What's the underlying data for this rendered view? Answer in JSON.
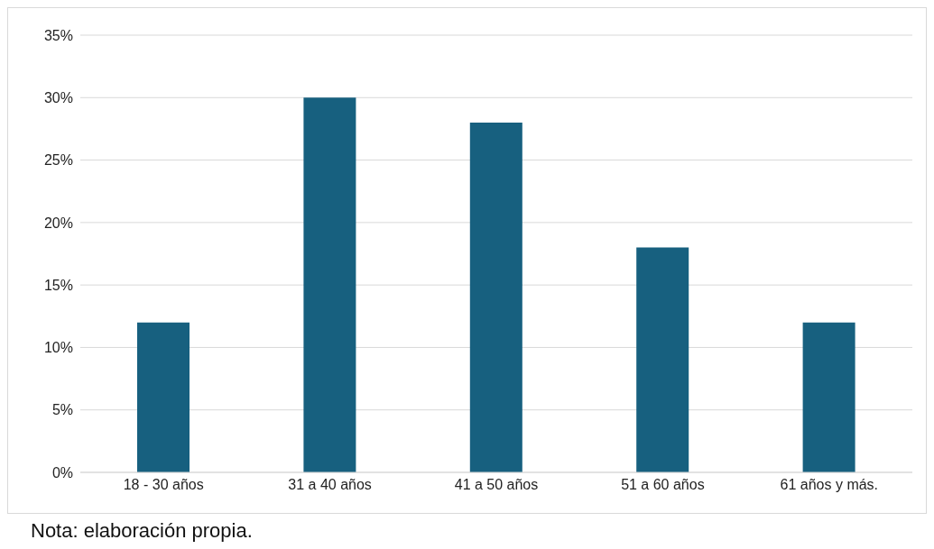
{
  "chart_data": {
    "type": "bar",
    "categories": [
      "18 - 30 años",
      "31 a 40 años",
      "41 a 50 años",
      "51 a 60 años",
      "61 años y más."
    ],
    "values": [
      12,
      30,
      28,
      18,
      12
    ],
    "color": "#17607f",
    "ylim": [
      0,
      35
    ],
    "yticks": [
      {
        "value": 0,
        "label": "0%"
      },
      {
        "value": 5,
        "label": "5%"
      },
      {
        "value": 10,
        "label": "10%"
      },
      {
        "value": 15,
        "label": "15%"
      },
      {
        "value": 20,
        "label": "20%"
      },
      {
        "value": 25,
        "label": "25%"
      },
      {
        "value": 30,
        "label": "30%"
      },
      {
        "value": 35,
        "label": "35%"
      }
    ],
    "grid": "y",
    "annotations": [
      "Nota: elaboración propia."
    ]
  }
}
